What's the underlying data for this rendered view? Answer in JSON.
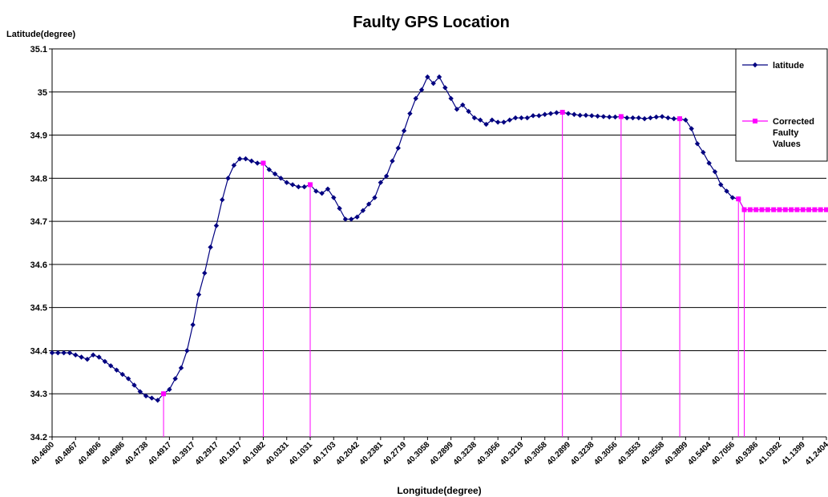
{
  "chart_data": {
    "type": "line",
    "title": "Faulty GPS Location",
    "y_label": "Latitude(degree)",
    "x_label": "Longitude(degree)",
    "categories": [
      "40.4600",
      null,
      null,
      null,
      "40.4867",
      null,
      null,
      null,
      "40.4806",
      null,
      null,
      null,
      "40.4986",
      null,
      null,
      null,
      "40.4738",
      null,
      null,
      null,
      "40.4917",
      null,
      null,
      null,
      "40.3917",
      null,
      null,
      null,
      "40.2917",
      null,
      null,
      null,
      "40.1917",
      null,
      null,
      null,
      "40.1082",
      null,
      null,
      null,
      "40.0331",
      null,
      null,
      null,
      "40.1031",
      null,
      null,
      null,
      "40.1703",
      null,
      null,
      null,
      "40.2042",
      null,
      null,
      null,
      "40.2381",
      null,
      null,
      null,
      "40.2719",
      null,
      null,
      null,
      "40.3058",
      null,
      null,
      null,
      "40.2899",
      null,
      null,
      null,
      "40.3238",
      null,
      null,
      null,
      "40.3056",
      null,
      null,
      null,
      "40.3219",
      null,
      null,
      null,
      "40.3058",
      null,
      null,
      null,
      "40.2899",
      null,
      null,
      null,
      "40.3238",
      null,
      null,
      null,
      "40.3056",
      null,
      null,
      null,
      "40.3553",
      null,
      null,
      null,
      "40.3558",
      null,
      null,
      null,
      "40.3899",
      null,
      null,
      null,
      "40.5404",
      null,
      null,
      null,
      "40.7056",
      null,
      null,
      null,
      "40.9386",
      null,
      null,
      null,
      "41.0392",
      null,
      null,
      null,
      "41.1399",
      null,
      null,
      null,
      "41.2404"
    ],
    "series": [
      {
        "name": "latitude",
        "color": "#000080",
        "marker": "diamond",
        "values": [
          34.395,
          34.395,
          34.395,
          34.395,
          34.39,
          34.385,
          34.38,
          34.39,
          34.385,
          34.375,
          34.365,
          34.355,
          34.345,
          34.335,
          34.32,
          34.305,
          34.295,
          34.29,
          34.285,
          34.3,
          34.31,
          34.335,
          34.36,
          34.4,
          34.46,
          34.53,
          34.58,
          34.64,
          34.69,
          34.75,
          34.8,
          34.83,
          34.845,
          34.845,
          34.84,
          34.835,
          34.835,
          34.82,
          34.81,
          34.8,
          34.79,
          34.785,
          34.78,
          34.78,
          34.785,
          34.77,
          34.765,
          34.775,
          34.755,
          34.73,
          34.705,
          34.705,
          34.71,
          34.725,
          34.74,
          34.755,
          34.79,
          34.805,
          34.84,
          34.87,
          34.91,
          34.95,
          34.985,
          35.005,
          35.035,
          35.02,
          35.035,
          35.01,
          34.985,
          34.96,
          34.97,
          34.955,
          34.94,
          34.935,
          34.925,
          34.935,
          34.93,
          34.93,
          34.935,
          34.94,
          34.94,
          34.94,
          34.945,
          34.945,
          34.948,
          34.95,
          34.952,
          34.953,
          34.95,
          34.948,
          34.946,
          34.946,
          34.945,
          34.944,
          34.943,
          34.942,
          34.942,
          34.943,
          34.94,
          34.94,
          34.94,
          34.938,
          34.94,
          34.942,
          34.943,
          34.94,
          34.938,
          34.938,
          34.935,
          34.915,
          34.88,
          34.86,
          34.835,
          34.815,
          34.785,
          34.77,
          34.755,
          34.752,
          34.727,
          null,
          null,
          null,
          null,
          null,
          null,
          null,
          null,
          null,
          null,
          null,
          null,
          null,
          null
        ]
      },
      {
        "name": "Corrected Faulty Values",
        "color": "#ff00ff",
        "marker": "square",
        "values": [
          null,
          null,
          null,
          null,
          null,
          null,
          null,
          null,
          null,
          null,
          null,
          null,
          null,
          null,
          null,
          null,
          null,
          null,
          null,
          34.3,
          null,
          null,
          null,
          null,
          null,
          null,
          null,
          null,
          null,
          null,
          null,
          null,
          null,
          null,
          null,
          null,
          34.835,
          null,
          null,
          null,
          null,
          null,
          null,
          null,
          34.785,
          null,
          null,
          null,
          null,
          null,
          null,
          null,
          null,
          null,
          null,
          null,
          null,
          null,
          null,
          null,
          null,
          null,
          null,
          null,
          null,
          null,
          null,
          null,
          null,
          null,
          null,
          null,
          null,
          null,
          null,
          null,
          null,
          null,
          null,
          null,
          null,
          null,
          null,
          null,
          null,
          null,
          null,
          34.953,
          null,
          null,
          null,
          null,
          null,
          null,
          null,
          null,
          null,
          34.943,
          null,
          null,
          null,
          null,
          null,
          null,
          null,
          null,
          null,
          34.938,
          null,
          null,
          null,
          null,
          null,
          null,
          null,
          null,
          null,
          34.752,
          34.727,
          34.727,
          34.727,
          34.727,
          34.727,
          34.727,
          34.727,
          34.727,
          34.727,
          34.727,
          34.727,
          34.727,
          34.727,
          34.727,
          34.727
        ]
      }
    ],
    "ylim": [
      34.2,
      35.1
    ],
    "yticks": [
      34.2,
      34.3,
      34.4,
      34.5,
      34.6,
      34.7,
      34.8,
      34.9,
      35,
      35.1
    ],
    "grid": true,
    "legend": "top-right"
  }
}
